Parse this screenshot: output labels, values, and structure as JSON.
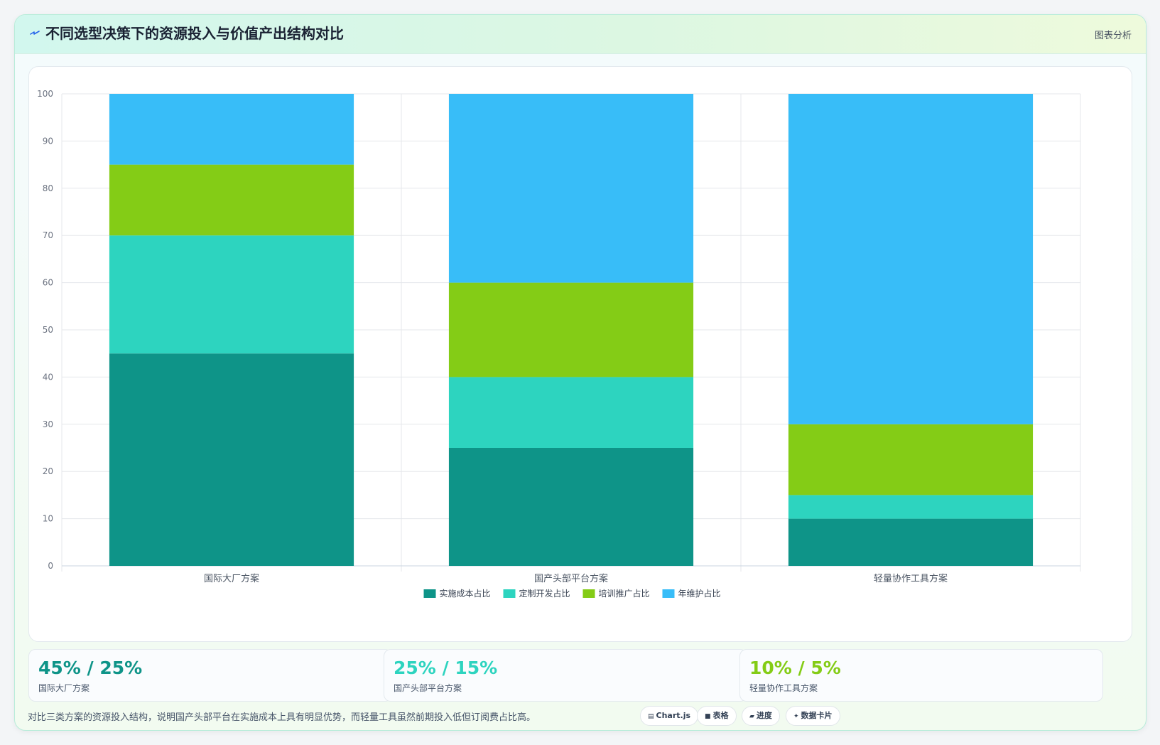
{
  "header": {
    "title": "不同选型决策下的资源投入与价值产出结构对比",
    "link_label": "图表分析"
  },
  "colors": {
    "teal_dark": "#0e9488",
    "teal_light": "#2dd4bf",
    "lime": "#84cc16",
    "sky": "#38bdf8",
    "title_icon": "#2563eb"
  },
  "chart_data": {
    "type": "bar",
    "stacked": true,
    "categories": [
      "国际大厂方案",
      "国产头部平台方案",
      "轻量协作工具方案"
    ],
    "series": [
      {
        "name": "实施成本占比",
        "values": [
          45,
          25,
          10
        ],
        "color": "#0e9488"
      },
      {
        "name": "定制开发占比",
        "values": [
          25,
          15,
          5
        ],
        "color": "#2dd4bf"
      },
      {
        "name": "培训推广占比",
        "values": [
          15,
          20,
          15
        ],
        "color": "#84cc16"
      },
      {
        "name": "年维护占比",
        "values": [
          15,
          40,
          70
        ],
        "color": "#38bdf8"
      }
    ],
    "y_ticks": [
      "0",
      "10",
      "20",
      "30",
      "40",
      "50",
      "60",
      "70",
      "80",
      "90",
      "100"
    ],
    "ylim": [
      0,
      100
    ],
    "grid": true,
    "legend_position": "bottom"
  },
  "stats": [
    {
      "value": "45% / 25%",
      "label": "国际大厂方案",
      "color": "#0e9488"
    },
    {
      "value": "25% / 15%",
      "label": "国产头部平台方案",
      "color": "#2dd4bf"
    },
    {
      "value": "10% / 5%",
      "label": "轻量协作工具方案",
      "color": "#84cc16"
    }
  ],
  "footer": {
    "text": "对比三类方案的资源投入结构，说明国产头部平台在实施成本上具有明显优势，而轻量工具虽然前期投入低但订阅费占比高。"
  },
  "tags": [
    {
      "icon": "chart-icon",
      "glyph": "▤",
      "label": "Chart.js"
    },
    {
      "icon": "table-icon",
      "glyph": "■",
      "label": "表格"
    },
    {
      "icon": "progress-icon",
      "glyph": "▰",
      "label": "进度"
    },
    {
      "icon": "sparkle-icon",
      "glyph": "✦",
      "label": "数据卡片"
    }
  ]
}
